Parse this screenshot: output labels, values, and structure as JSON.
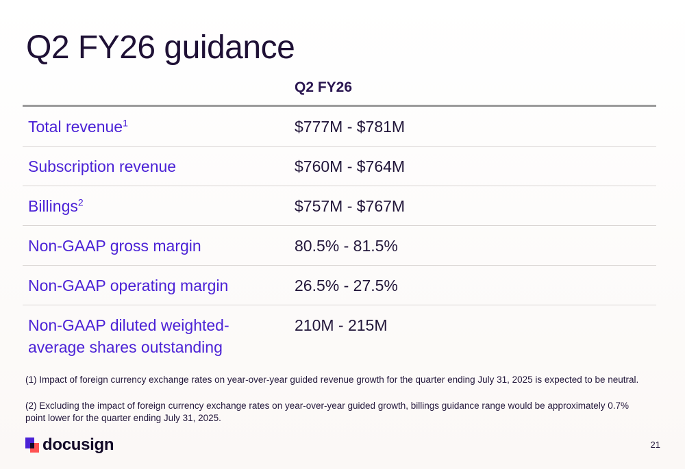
{
  "slide": {
    "title": "Q2 FY26 guidance",
    "column_header": "Q2 FY26",
    "rows": [
      {
        "label": "Total revenue",
        "sup": "1",
        "value": "$777M - $781M"
      },
      {
        "label": "Subscription revenue",
        "sup": "",
        "value": "$760M - $764M"
      },
      {
        "label": "Billings",
        "sup": "2",
        "value": "$757M - $767M"
      },
      {
        "label": "Non-GAAP gross margin",
        "sup": "",
        "value": "80.5% - 81.5%"
      },
      {
        "label": "Non-GAAP operating margin",
        "sup": "",
        "value": "26.5% - 27.5%"
      },
      {
        "label": "Non-GAAP diluted weighted-average shares outstanding",
        "sup": "",
        "value": "210M - 215M"
      }
    ],
    "footnotes": [
      "(1) Impact of foreign currency exchange rates on year-over-year guided revenue growth for the quarter ending July 31, 2025 is expected to be neutral.",
      "(2) Excluding the impact of foreign currency exchange rates on year-over-year guided growth, billings guidance range would be approximately 0.7% point lower for the quarter ending July 31, 2025."
    ],
    "logo_text": "docusign",
    "page_number": "21"
  },
  "colors": {
    "label": "#4b22d6",
    "title": "#1e1035",
    "logo_accent": "#4b22d6",
    "logo_secondary": "#ff5252"
  },
  "icons": {
    "logo": "docusign-logo-icon"
  }
}
